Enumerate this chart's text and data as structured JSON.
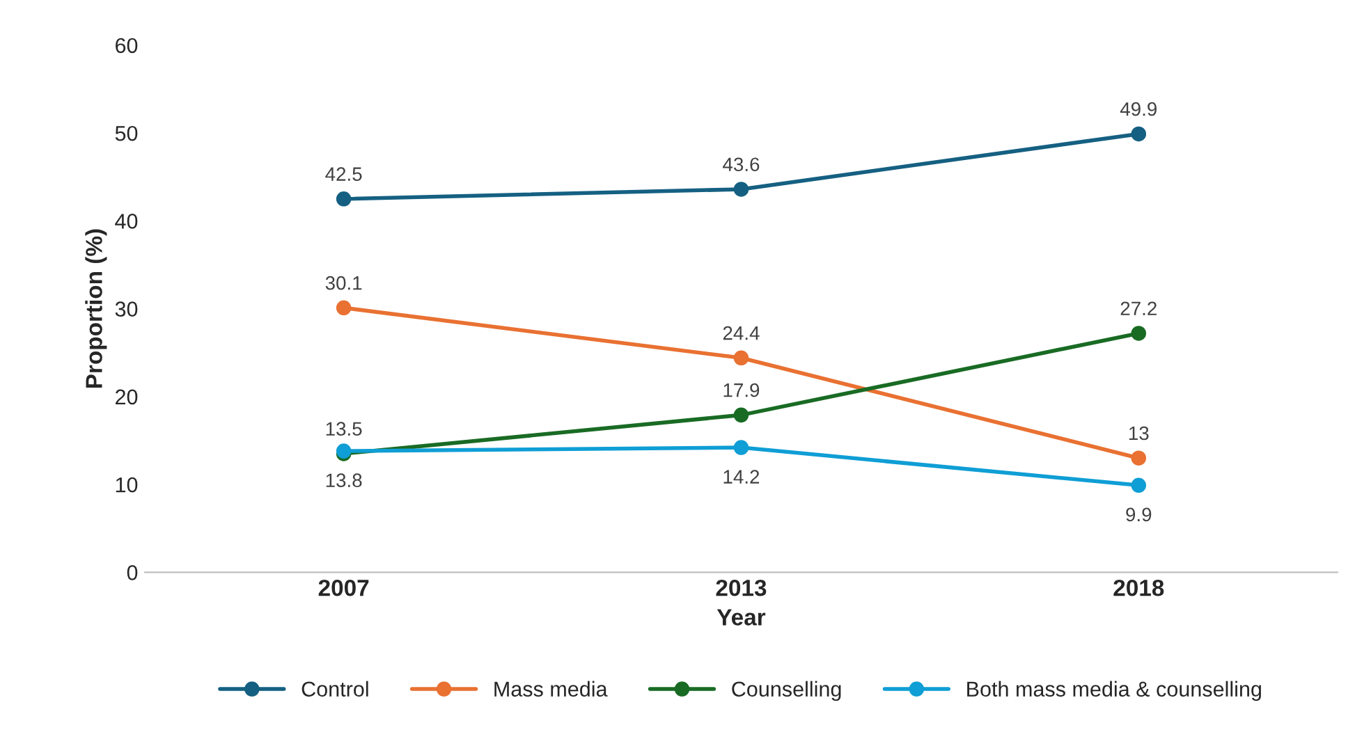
{
  "chart_data": {
    "type": "line",
    "xlabel": "Year",
    "ylabel": "Proportion (%)",
    "categories": [
      "2007",
      "2013",
      "2018"
    ],
    "series": [
      {
        "name": "Control",
        "color": "#156082",
        "values": [
          42.5,
          43.6,
          49.9
        ]
      },
      {
        "name": "Mass media",
        "color": "#e97132",
        "values": [
          30.1,
          24.4,
          13
        ]
      },
      {
        "name": "Counselling",
        "color": "#196b24",
        "values": [
          13.5,
          17.9,
          27.2
        ]
      },
      {
        "name": "Both mass media & counselling",
        "color": "#0f9ed5",
        "values": [
          13.8,
          14.2,
          9.9
        ]
      }
    ],
    "ylim": [
      0,
      60
    ],
    "yticks": [
      0,
      10,
      20,
      30,
      40,
      50,
      60
    ],
    "grid": false,
    "legend": "bottom",
    "marker": "circle",
    "line_style": "solid",
    "data_labels": true
  }
}
